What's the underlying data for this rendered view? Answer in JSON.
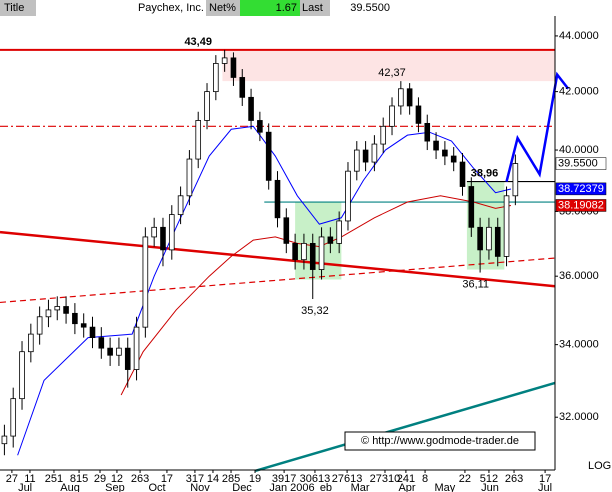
{
  "header": {
    "title": "Title",
    "name": "Paychex, Inc.",
    "net_label": "Net%",
    "net_value": "1.67",
    "last_label": "Last",
    "last_value": "39.5500"
  },
  "chart_data": {
    "type": "candlestick",
    "log_scale": true,
    "x": [
      2,
      6,
      10,
      14,
      18,
      22,
      26,
      30,
      34,
      38,
      42,
      46,
      50,
      54,
      58,
      62,
      66,
      70,
      74,
      78,
      82,
      86,
      90,
      94,
      98,
      102,
      106,
      110,
      114,
      118,
      122,
      126,
      130,
      134,
      138,
      142,
      146,
      150,
      154,
      158,
      162,
      166,
      170,
      174,
      178,
      182,
      186,
      190,
      194,
      198,
      202,
      206,
      210,
      214,
      218,
      222,
      226,
      230,
      234
    ],
    "open": [
      31.3,
      31.5,
      32.5,
      33.8,
      34.3,
      34.8,
      35.0,
      35.1,
      34.9,
      34.6,
      34.5,
      34.2,
      33.9,
      33.7,
      33.9,
      33.3,
      34.5,
      37.2,
      37.5,
      36.8,
      37.9,
      38.5,
      39.7,
      41.0,
      42.0,
      43.0,
      43.2,
      42.5,
      41.8,
      41.0,
      40.6,
      39.0,
      37.8,
      37.0,
      36.5,
      37.0,
      36.2,
      37.2,
      37.0,
      37.7,
      39.3,
      40.0,
      39.6,
      40.2,
      40.8,
      41.5,
      42.1,
      41.5,
      40.9,
      40.3,
      40.0,
      39.8,
      39.6,
      38.8,
      37.5,
      36.8,
      37.5,
      36.6,
      38.5
    ],
    "high": [
      31.8,
      32.8,
      34.1,
      34.6,
      35.1,
      35.3,
      35.4,
      35.4,
      35.2,
      34.9,
      34.8,
      34.5,
      34.2,
      34.2,
      34.2,
      34.8,
      37.5,
      37.8,
      37.8,
      38.2,
      38.8,
      40.0,
      41.3,
      42.3,
      43.3,
      43.49,
      43.4,
      42.8,
      42.1,
      41.3,
      40.9,
      39.3,
      38.1,
      37.3,
      37.3,
      37.3,
      37.5,
      37.5,
      38.0,
      39.6,
      40.3,
      40.3,
      40.5,
      41.1,
      41.8,
      42.37,
      42.3,
      41.8,
      41.2,
      40.6,
      40.3,
      40.1,
      39.9,
      39.1,
      37.8,
      37.8,
      37.8,
      38.8,
      39.85
    ],
    "low": [
      31.0,
      31.2,
      32.2,
      33.5,
      34.0,
      34.5,
      34.7,
      34.6,
      34.3,
      34.2,
      33.9,
      33.6,
      33.4,
      33.4,
      32.8,
      33.0,
      34.2,
      36.9,
      36.3,
      36.5,
      37.6,
      38.2,
      39.4,
      40.7,
      41.7,
      42.7,
      42.2,
      41.5,
      40.7,
      40.3,
      38.7,
      37.5,
      36.7,
      36.2,
      36.2,
      35.32,
      35.9,
      36.7,
      36.7,
      37.4,
      39.0,
      39.3,
      39.3,
      39.9,
      40.5,
      41.2,
      41.2,
      40.6,
      40.0,
      39.7,
      39.5,
      39.3,
      38.5,
      37.2,
      36.11,
      36.5,
      36.3,
      36.3,
      38.2
    ],
    "close": [
      31.5,
      32.5,
      33.8,
      34.3,
      34.8,
      35.0,
      35.1,
      34.9,
      34.6,
      34.5,
      34.2,
      33.9,
      33.7,
      33.9,
      33.3,
      34.5,
      37.2,
      37.5,
      36.8,
      37.9,
      38.5,
      39.7,
      41.0,
      42.0,
      43.0,
      43.2,
      42.5,
      41.8,
      41.0,
      40.6,
      39.0,
      37.8,
      37.0,
      36.5,
      37.0,
      36.2,
      37.2,
      37.0,
      37.7,
      39.3,
      40.0,
      39.6,
      40.2,
      40.8,
      41.5,
      42.1,
      41.5,
      40.9,
      40.3,
      40.0,
      39.8,
      39.6,
      38.8,
      37.5,
      36.8,
      37.5,
      36.6,
      38.5,
      39.55
    ],
    "up_color": "#ffffff",
    "down_color": "#000000",
    "candle_color": "#000000",
    "xlim": [
      0,
      252
    ],
    "ylim": [
      30.62,
      45.34
    ],
    "yticks": [
      {
        "value": 32,
        "label": "32.0000"
      },
      {
        "value": 34,
        "label": "34.0000"
      },
      {
        "value": 36,
        "label": "36.0000"
      },
      {
        "value": 38,
        "label": "38.0000"
      },
      {
        "value": 40,
        "label": "40.0000"
      },
      {
        "value": 42,
        "label": "42.0000"
      },
      {
        "value": 44,
        "label": "44.0000"
      }
    ],
    "xticks": [
      {
        "value": 5.4,
        "label": "27"
      },
      {
        "value": 13.6,
        "label": "11"
      },
      {
        "value": 24.5,
        "label": "251"
      },
      {
        "value": 35.9,
        "label": "815"
      },
      {
        "value": 45.4,
        "label": "29"
      },
      {
        "value": 53.1,
        "label": "12"
      },
      {
        "value": 63.6,
        "label": "263"
      },
      {
        "value": 75.8,
        "label": "17"
      },
      {
        "value": 88.5,
        "label": "317"
      },
      {
        "value": 96.7,
        "label": "14"
      },
      {
        "value": 104.9,
        "label": "285"
      },
      {
        "value": 115.8,
        "label": "19"
      },
      {
        "value": 129,
        "label": "3917"
      },
      {
        "value": 143,
        "label": "30613"
      },
      {
        "value": 157.6,
        "label": "27613"
      },
      {
        "value": 174.8,
        "label": "27310"
      },
      {
        "value": 184.3,
        "label": "241"
      },
      {
        "value": 193,
        "label": "8"
      },
      {
        "value": 211.1,
        "label": "22"
      },
      {
        "value": 222,
        "label": "512"
      },
      {
        "value": 233.4,
        "label": "263"
      },
      {
        "value": 247.5,
        "label": "17"
      }
    ],
    "month_ticks": [
      {
        "value": 11.4,
        "label": "Jul"
      },
      {
        "value": 31.8,
        "label": "Aug"
      },
      {
        "value": 52.2,
        "label": "Sep"
      },
      {
        "value": 71.3,
        "label": "Oct"
      },
      {
        "value": 90.8,
        "label": "Nov"
      },
      {
        "value": 109.9,
        "label": "Dec"
      },
      {
        "value": 132.6,
        "label": "Jan 2006"
      },
      {
        "value": 148,
        "label": "eb"
      },
      {
        "value": 163.5,
        "label": "Mar"
      },
      {
        "value": 184.8,
        "label": "Apr"
      },
      {
        "value": 202,
        "label": "May"
      },
      {
        "value": 222.5,
        "label": "Jun"
      },
      {
        "value": 247.5,
        "label": "Jul"
      }
    ],
    "moving_averages": [
      {
        "color": "#0000ff",
        "x": [
          8,
          20,
          40,
          60,
          70,
          80,
          95,
          105,
          115,
          125,
          135,
          145,
          155,
          165,
          175,
          185,
          195,
          205,
          215,
          225,
          232
        ],
        "values": [
          31.0,
          33.0,
          34.2,
          34.3,
          36.0,
          37.5,
          39.8,
          40.7,
          40.8,
          39.8,
          38.5,
          37.6,
          37.8,
          39.0,
          40.0,
          40.5,
          40.6,
          40.3,
          39.4,
          38.6,
          38.72
        ]
      },
      {
        "color": "#cc0000",
        "x": [
          55,
          65,
          80,
          95,
          105,
          115,
          125,
          135,
          145,
          155,
          170,
          185,
          200,
          215,
          225,
          232
        ],
        "values": [
          32.6,
          33.8,
          35.0,
          36.0,
          36.6,
          37.1,
          37.2,
          37.0,
          36.9,
          37.2,
          37.8,
          38.3,
          38.5,
          38.3,
          38.1,
          38.19
        ]
      }
    ],
    "zone": {
      "x": [
        101,
        252
      ],
      "values": [
        42.37,
        43.49
      ],
      "color": "#fde4e4"
    },
    "levels": [
      {
        "value": 43.49,
        "x": [
          0,
          252
        ],
        "color": "#dd0000",
        "style": "solid"
      },
      {
        "value": 40.8,
        "x": [
          0,
          252
        ],
        "color": "#dd0000",
        "style": "dashdot"
      },
      {
        "value": 38.96,
        "x": [
          212,
          252
        ],
        "color": "#000000",
        "style": "solid"
      },
      {
        "value": 38.3,
        "x": [
          120,
          252
        ],
        "color": "#008080",
        "style": "solid"
      }
    ],
    "boxes": [
      {
        "x": [
          134,
          155
        ],
        "values": [
          35.9,
          38.3
        ],
        "color": "#c8f0c8"
      },
      {
        "x": [
          212,
          229
        ],
        "values": [
          36.2,
          38.96
        ],
        "color": "#c8f0c8"
      }
    ],
    "trendlines": [
      {
        "x": [
          0,
          252
        ],
        "values": [
          37.35,
          35.7
        ],
        "color": "#dd0000",
        "style": "thick"
      },
      {
        "x": [
          0,
          252
        ],
        "values": [
          35.22,
          36.55
        ],
        "color": "#dd0000",
        "style": "dashed"
      },
      {
        "x": [
          116,
          252
        ],
        "values": [
          30.6,
          32.93
        ],
        "color": "#008080",
        "style": "thick"
      },
      {
        "x": [
          230,
          235,
          245,
          253,
          258
        ],
        "values": [
          38.96,
          40.4,
          39.2,
          42.6,
          42.1
        ],
        "color": "#0000ff",
        "style": "thick"
      }
    ],
    "annotations": [
      {
        "text": "43,49",
        "value": 43.49,
        "x": 90
      },
      {
        "text": "42,37",
        "value": 42.37,
        "x": 178
      },
      {
        "text": "38,96",
        "value": 38.96,
        "x": 220
      },
      {
        "text": "35,32",
        "value": 35.32,
        "x": 143
      },
      {
        "text": "36,11",
        "value": 36.11,
        "x": 216
      }
    ],
    "price_boxes": [
      {
        "value": 39.55,
        "label": "39.5500",
        "color": "#ffffff",
        "text_color": "#000000"
      },
      {
        "value": 38.72379,
        "label": "38.72379",
        "color": "#0000ff",
        "text_color": "#ffffff"
      },
      {
        "value": 38.19082,
        "label": "38.19082",
        "color": "#dd0000",
        "text_color": "#ffffff"
      }
    ],
    "copyright": "© http://www.godmode-trader.de",
    "scale_label": "LOG"
  }
}
